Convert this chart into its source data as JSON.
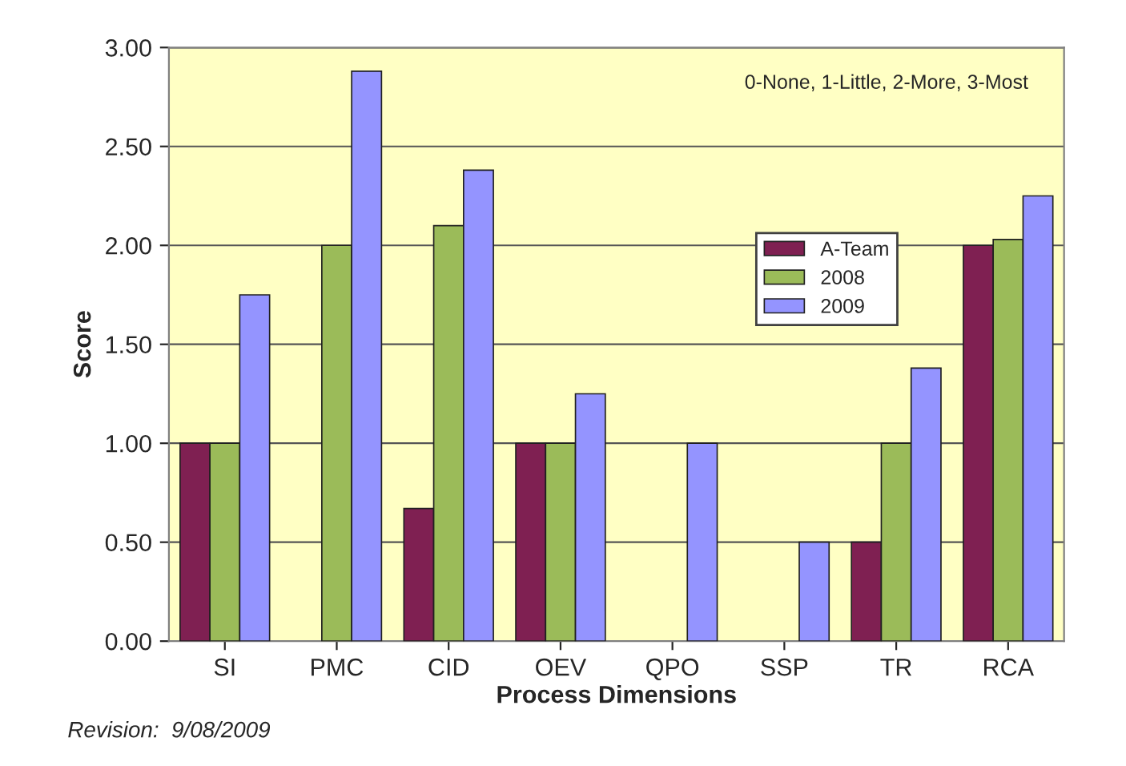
{
  "chart_data": {
    "type": "bar",
    "xlabel": "Process Dimensions",
    "ylabel": "Score",
    "categories": [
      "SI",
      "PMC",
      "CID",
      "OEV",
      "QPO",
      "SSP",
      "TR",
      "RCA"
    ],
    "series": [
      {
        "name": "A-Team",
        "color": "#7f2052",
        "values": [
          1.0,
          null,
          0.67,
          1.0,
          null,
          null,
          0.5,
          2.0
        ]
      },
      {
        "name": "2008",
        "color": "#9bbb59",
        "values": [
          1.0,
          2.0,
          2.1,
          1.0,
          null,
          null,
          1.0,
          2.03
        ]
      },
      {
        "name": "2009",
        "color": "#9494ff",
        "values": [
          1.75,
          2.88,
          2.38,
          1.25,
          1.0,
          0.5,
          1.38,
          2.25
        ]
      }
    ],
    "ylim": [
      0,
      3
    ],
    "yticks": [
      {
        "value": 0,
        "label": "0.00"
      },
      {
        "value": 0.5,
        "label": "0.50"
      },
      {
        "value": 1,
        "label": "1.00"
      },
      {
        "value": 1.5,
        "label": "1.50"
      },
      {
        "value": 2,
        "label": "2.00"
      },
      {
        "value": 2.5,
        "label": "2.50"
      },
      {
        "value": 3,
        "label": "3.00"
      }
    ],
    "grid": "y",
    "legend": "center right",
    "annotations": [
      "0-None, 1-Little, 2-More, 3-Most",
      "Revision:  9/08/2009"
    ]
  }
}
